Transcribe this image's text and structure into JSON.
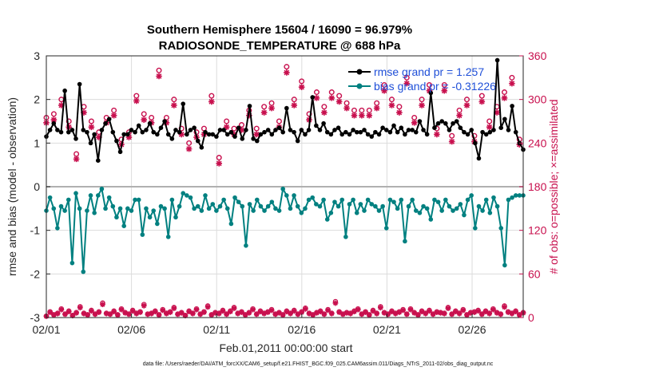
{
  "chart_data": {
    "type": "line",
    "title_line1": "Southern Hemisphere 15604 / 16090 = 96.979%",
    "title_line2": "RADIOSONDE_TEMPERATURE @ 688 hPa",
    "xlabel": "Feb.01,2011 00:00:00 start",
    "ylabel_left": "rmse and bias (model - observation)",
    "ylabel_right": "# of obs: o=possible; ×=assimilated",
    "footer": "data file: /Users/raeder/DAI/ATM_forcXX/CAM6_setup/f.e21.FHIST_BGC.f09_025.CAM6assim.011/Diags_NTrS_2011-02/obs_diag_output.nc",
    "x_tick_labels": [
      "02/01",
      "02/06",
      "02/11",
      "02/16",
      "02/21",
      "02/26"
    ],
    "x_tick_days": [
      1,
      6,
      11,
      16,
      21,
      26
    ],
    "x_range_days": [
      1,
      29
    ],
    "y_left_range": [
      -3,
      3
    ],
    "y_left_ticks": [
      "-3",
      "-2",
      "-1",
      "0",
      "1",
      "2",
      "3"
    ],
    "y_right_range": [
      0,
      360
    ],
    "y_right_ticks": [
      "0",
      "60",
      "120",
      "180",
      "240",
      "300",
      "360"
    ],
    "grid": true,
    "legend_position": "top-right",
    "colors": {
      "rmse": "#000000",
      "bias": "#008080",
      "obs": "#c8104e",
      "legend_text": "#1f4fd8",
      "zero_line": "#b0b0b0",
      "grid": "#dcdcdc"
    },
    "series": [
      {
        "name": "rmse grand pr = 1.257",
        "values": [
          1.15,
          1.3,
          1.45,
          1.3,
          1.25,
          2.2,
          1.25,
          1.3,
          1.1,
          2.35,
          1.3,
          1.25,
          1.0,
          1.2,
          0.6,
          1.3,
          1.45,
          1.55,
          1.25,
          1.05,
          0.8,
          1.2,
          1.2,
          1.3,
          1.25,
          1.4,
          1.25,
          1.3,
          1.45,
          1.25,
          1.2,
          1.35,
          1.5,
          1.2,
          1.1,
          1.3,
          1.25,
          1.9,
          1.2,
          1.3,
          1.35,
          1.05,
          0.9,
          1.25,
          1.2,
          1.2,
          1.15,
          1.3,
          1.3,
          1.2,
          1.25,
          1.15,
          1.35,
          1.1,
          1.3,
          1.85,
          1.1,
          1.05,
          1.2,
          1.25,
          1.3,
          1.2,
          1.3,
          1.35,
          1.25,
          1.8,
          1.3,
          1.25,
          1.05,
          1.3,
          1.2,
          1.3,
          2.05,
          1.4,
          1.3,
          1.45,
          1.25,
          1.2,
          1.3,
          1.35,
          1.2,
          1.25,
          1.2,
          1.3,
          1.25,
          1.25,
          1.3,
          1.2,
          1.15,
          1.25,
          1.2,
          1.35,
          1.3,
          1.25,
          1.4,
          1.25,
          1.35,
          1.2,
          1.3,
          1.3,
          1.25,
          1.5,
          1.3,
          1.2,
          2.15,
          1.35,
          1.45,
          1.5,
          1.45,
          1.3,
          1.45,
          1.5,
          1.35,
          1.25,
          1.2,
          1.3,
          1.0,
          0.65,
          1.25,
          1.2,
          1.25,
          1.3,
          2.9,
          1.35,
          1.55,
          1.3,
          1.85,
          1.25,
          1.0,
          0.85
        ]
      },
      {
        "name": "bias grand pr = -0.31226",
        "values": [
          -0.55,
          -0.25,
          -0.5,
          -0.95,
          -0.45,
          -0.55,
          -0.3,
          -1.75,
          -0.15,
          -0.5,
          -1.95,
          -0.55,
          -0.2,
          -0.6,
          -0.2,
          -0.05,
          -0.5,
          -0.25,
          -0.45,
          -0.7,
          -0.5,
          -0.9,
          -0.5,
          -0.55,
          -0.3,
          -0.3,
          -1.1,
          -0.5,
          -0.7,
          -0.55,
          -0.85,
          -0.45,
          -0.5,
          -1.15,
          -0.3,
          -0.7,
          -0.45,
          -0.15,
          -0.2,
          -0.25,
          -0.5,
          -0.45,
          -0.55,
          -0.2,
          -0.5,
          -0.4,
          -0.55,
          -0.45,
          -0.3,
          -0.5,
          -0.85,
          -0.25,
          -0.35,
          -0.45,
          -1.35,
          -0.4,
          -0.55,
          -0.3,
          -0.45,
          -0.55,
          -0.45,
          -0.35,
          -0.5,
          -0.55,
          -0.05,
          -0.2,
          -0.5,
          -0.2,
          -0.45,
          -0.6,
          -0.5,
          -0.3,
          -0.25,
          -0.4,
          -0.45,
          -0.3,
          -0.75,
          -0.6,
          -0.35,
          -0.45,
          -0.3,
          -1.15,
          -0.4,
          -0.3,
          -0.6,
          -0.4,
          -0.55,
          -0.3,
          -0.4,
          -0.45,
          -0.55,
          -0.45,
          -0.95,
          -0.3,
          -0.35,
          -0.5,
          -0.3,
          -1.25,
          -0.45,
          -0.3,
          -0.55,
          -0.6,
          -0.45,
          -0.5,
          -0.75,
          -0.3,
          -0.35,
          -0.55,
          -0.3,
          -0.45,
          -0.55,
          -0.5,
          -0.4,
          -0.65,
          -0.3,
          -0.2,
          -0.95,
          -0.45,
          -0.55,
          -0.3,
          -0.6,
          -0.25,
          -0.45,
          -0.95,
          -1.8,
          -0.3,
          -0.25,
          -0.2,
          -0.2,
          -0.2
        ]
      },
      {
        "name": "obs possible",
        "values": [
          275,
          250,
          280,
          240,
          300,
          310,
          270,
          260,
          225,
          265,
          290,
          285,
          270,
          230,
          255,
          270,
          275,
          300,
          285,
          255,
          245,
          230,
          255,
          305,
          305,
          285,
          280,
          260,
          275,
          290,
          340,
          335,
          275,
          280,
          300,
          270,
          260,
          250,
          240,
          285,
          255,
          270,
          260,
          275,
          305,
          300,
          220,
          295,
          270,
          280,
          260,
          305,
          265,
          275,
          285,
          290,
          260,
          285,
          290,
          280,
          295,
          275,
          270,
          300,
          345,
          265,
          300,
          290,
          325,
          270,
          280,
          295,
          310,
          300,
          290,
          345,
          310,
          300,
          305,
          280,
          295,
          305,
          285,
          320,
          285,
          255,
          285,
          265,
          295,
          275,
          320,
          305,
          300,
          280,
          290,
          310,
          330,
          305,
          275,
          300,
          300,
          285,
          320,
          285,
          260,
          290,
          320,
          285,
          250,
          240,
          285,
          300,
          300,
          305,
          250,
          265,
          305,
          280,
          270,
          270,
          290,
          320,
          310,
          300,
          330,
          280,
          245,
          240
        ]
      },
      {
        "name": "obs assimilated",
        "values": [
          268,
          245,
          272,
          235,
          292,
          302,
          262,
          252,
          218,
          258,
          282,
          277,
          262,
          222,
          248,
          262,
          268,
          292,
          278,
          248,
          238,
          222,
          248,
          297,
          298,
          278,
          272,
          252,
          268,
          282,
          332,
          327,
          268,
          272,
          292,
          262,
          252,
          243,
          232,
          278,
          248,
          262,
          252,
          268,
          297,
          292,
          212,
          288,
          262,
          272,
          252,
          297,
          258,
          268,
          278,
          282,
          252,
          278,
          282,
          272,
          288,
          268,
          262,
          292,
          337,
          258,
          292,
          282,
          317,
          262,
          272,
          288,
          302,
          292,
          282,
          337,
          302,
          292,
          297,
          272,
          288,
          297,
          278,
          312,
          278,
          248,
          278,
          258,
          288,
          268,
          312,
          297,
          292,
          272,
          282,
          302,
          322,
          297,
          268,
          292,
          292,
          278,
          312,
          278,
          252,
          282,
          312,
          278,
          242,
          232,
          278,
          292,
          292,
          297,
          242,
          258,
          297,
          272,
          262,
          262,
          282,
          312,
          302,
          292,
          322,
          272,
          238,
          232
        ]
      }
    ],
    "bottom_obs_possible": [
      2,
      8,
      4,
      6,
      12,
      5,
      9,
      3,
      7,
      15,
      6,
      4,
      10,
      5,
      8,
      20,
      6,
      5,
      9,
      4,
      12,
      7,
      5,
      10,
      6,
      8,
      18,
      5,
      6,
      9,
      4,
      11,
      6,
      8,
      14,
      5,
      7,
      3,
      9,
      6,
      12,
      5,
      8,
      16,
      4,
      7,
      6,
      10,
      5,
      9,
      14,
      6,
      8,
      4,
      7,
      12,
      5,
      9,
      6,
      8,
      11,
      5,
      7,
      4,
      9,
      6,
      10,
      5,
      8,
      13,
      6,
      4,
      7,
      9,
      5,
      11,
      6,
      22,
      8,
      5,
      7,
      6,
      9,
      12,
      5,
      8,
      4,
      10,
      6,
      15,
      7,
      5,
      9,
      6,
      8,
      11,
      5,
      12,
      7,
      4,
      9,
      6,
      10,
      5,
      8,
      7,
      6,
      14,
      5,
      9,
      6,
      11,
      4,
      7,
      8,
      10,
      5,
      9,
      6,
      12,
      7,
      5,
      16,
      8,
      6,
      9,
      4,
      7
    ]
  }
}
